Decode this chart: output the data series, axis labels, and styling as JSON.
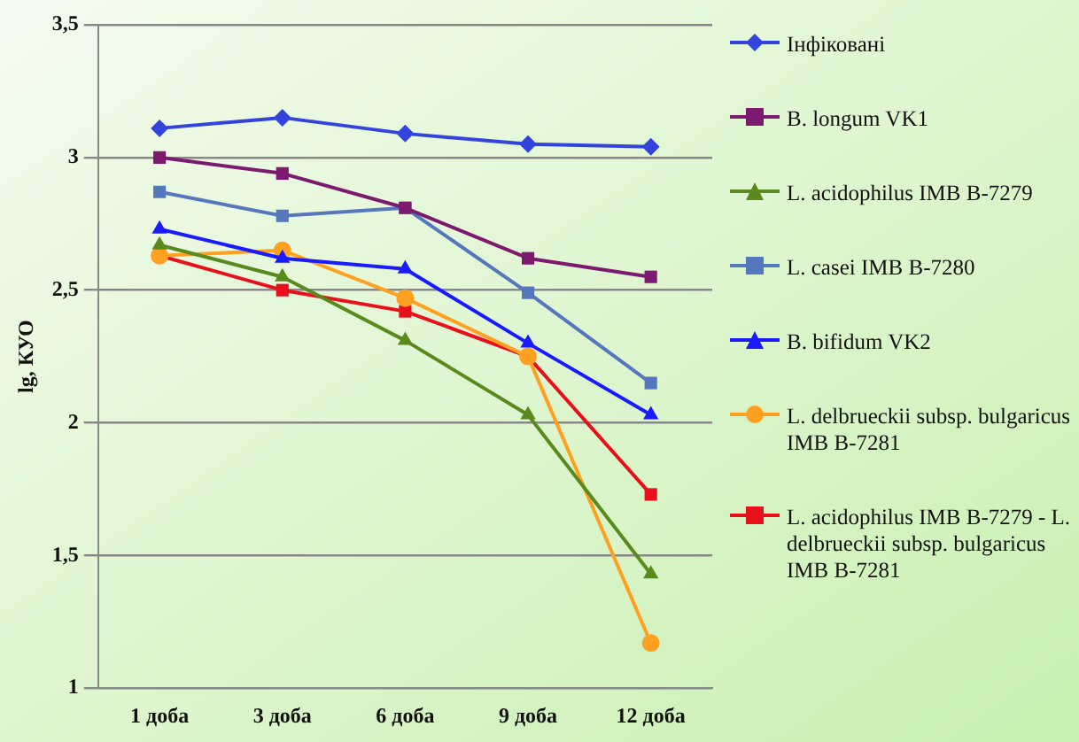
{
  "chart_data": {
    "type": "line",
    "ylabel": "lg, КУО",
    "categories": [
      "1 доба",
      "3 доба",
      "6 доба",
      "9 доба",
      "12 доба"
    ],
    "ylim": [
      1,
      3.5
    ],
    "yticks": [
      1,
      {
        "value": 1.5,
        "label": "1,5"
      },
      2,
      {
        "value": 2.5,
        "label": "2,5"
      },
      3,
      {
        "value": 3.5,
        "label": "3,5"
      }
    ],
    "grid": "y",
    "legend": "right",
    "line_style": "solid",
    "series": [
      {
        "name": "Інфіковані",
        "color": "#3344dd",
        "marker": "diamond",
        "values": [
          3.11,
          3.15,
          3.09,
          3.05,
          3.04
        ]
      },
      {
        "name": "B. longum VK1",
        "color": "#7b1a6e",
        "marker": "square",
        "values": [
          3.0,
          2.94,
          2.81,
          2.62,
          2.55
        ]
      },
      {
        "name": "L. acidophilus IMB B-7279",
        "color": "#5a8a1e",
        "marker": "triangle",
        "values": [
          2.67,
          2.55,
          2.31,
          2.03,
          1.43
        ]
      },
      {
        "name": "L. casei IMB B-7280",
        "color": "#5577bb",
        "marker": "square",
        "values": [
          2.87,
          2.78,
          2.81,
          2.49,
          2.15
        ]
      },
      {
        "name": "B. bifidum VK2",
        "color": "#1a1aff",
        "marker": "triangle",
        "values": [
          2.73,
          2.62,
          2.58,
          2.3,
          2.03
        ]
      },
      {
        "name": "L. delbrueckii subsp. bulgaricus IMB B-7281",
        "color": "#ffa020",
        "marker": "circle",
        "values": [
          2.63,
          2.65,
          2.47,
          2.25,
          1.17
        ]
      },
      {
        "name": "L. acidophilus IMB B-7279 - L. delbrueckii subsp. bulgaricus IMB B-7281",
        "color": "#e8101a",
        "marker": "square",
        "values": [
          2.63,
          2.5,
          2.42,
          2.25,
          1.73
        ]
      }
    ]
  }
}
